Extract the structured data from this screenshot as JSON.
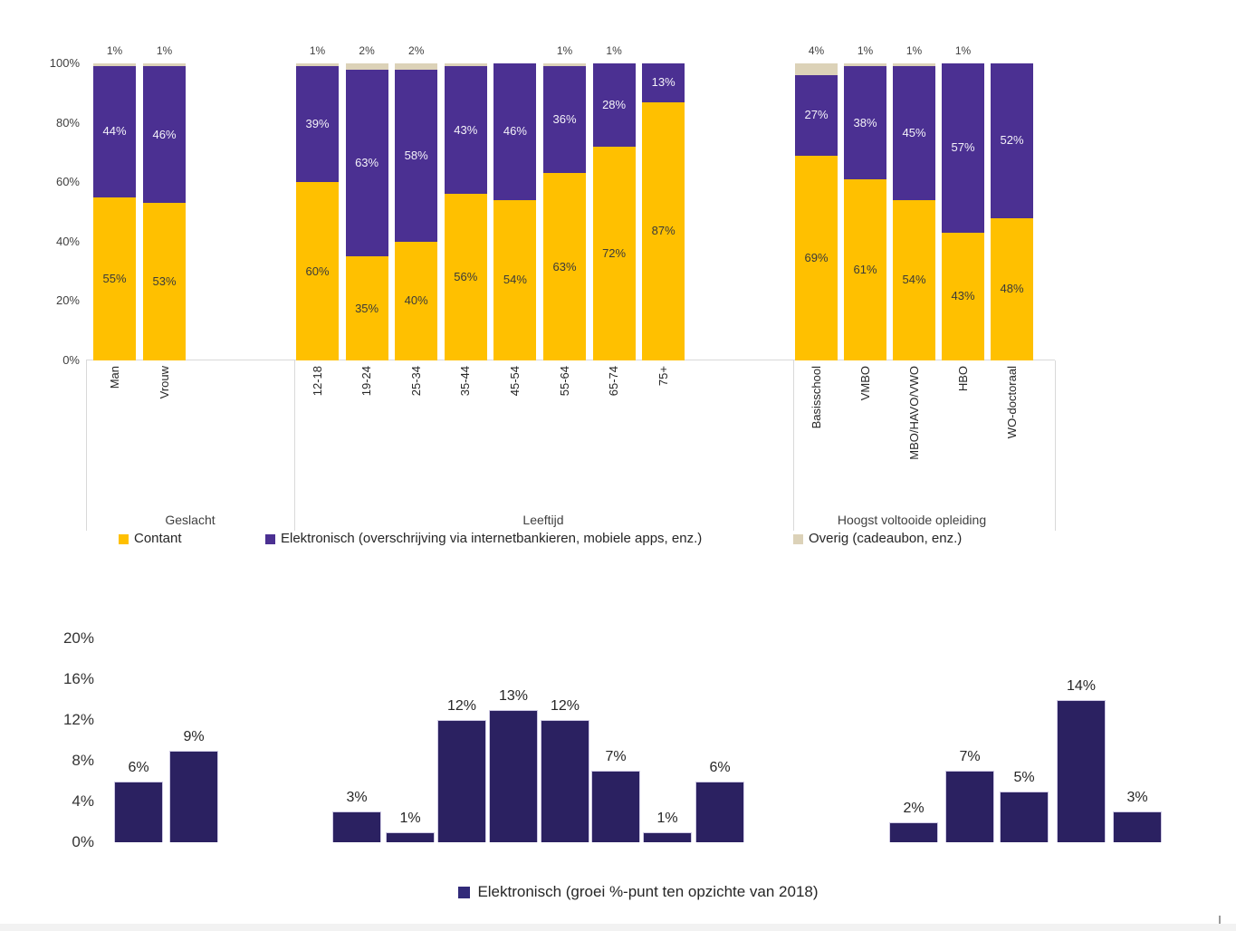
{
  "page": {
    "background": "#ffffff"
  },
  "colors": {
    "contant": "#FFC000",
    "elektronisch": "#4B3092",
    "overig": "#DCD2B8",
    "growth_bar": "#2B2161",
    "growth_bar_edge": "#CFCAE4",
    "axis_gray": "#D9D9D9"
  },
  "chart_data": [
    {
      "type": "bar",
      "variant": "stacked-100",
      "title": "",
      "ylabel": "",
      "ylim": [
        0,
        100
      ],
      "grid": false,
      "legend_position": "bottom",
      "y_axis": {
        "ticks": [
          "100%",
          "80%",
          "60%",
          "40%",
          "20%",
          "0%"
        ]
      },
      "series_order_bottom_to_top": [
        "Contant",
        "Elektronisch",
        "Overig"
      ],
      "legend": [
        {
          "label": "Contant",
          "color": "#FFC000"
        },
        {
          "label": "Elektronisch (overschrijving via internetbankieren, mobiele apps, enz.)",
          "color": "#4B3092"
        },
        {
          "label": "Overig (cadeaubon, enz.)",
          "color": "#DCD2B8"
        }
      ],
      "groups": [
        {
          "label": "Geslacht",
          "bars": [
            {
              "category": "Man",
              "contant": 55,
              "elektronisch": 44,
              "overig_label": "1%"
            },
            {
              "category": "Vrouw",
              "contant": 53,
              "elektronisch": 46,
              "overig_label": "1%"
            }
          ]
        },
        {
          "label": "Leeftijd",
          "bars": [
            {
              "category": "12-18",
              "contant": 60,
              "elektronisch": 39,
              "overig_label": "1%"
            },
            {
              "category": "19-24",
              "contant": 35,
              "elektronisch": 63,
              "overig_label": "2%"
            },
            {
              "category": "25-34",
              "contant": 40,
              "elektronisch": 58,
              "overig_label": "2%"
            },
            {
              "category": "35-44",
              "contant": 56,
              "elektronisch": 43,
              "overig_label": ""
            },
            {
              "category": "45-54",
              "contant": 54,
              "elektronisch": 46,
              "overig_label": ""
            },
            {
              "category": "55-64",
              "contant": 63,
              "elektronisch": 36,
              "overig_label": "1%"
            },
            {
              "category": "65-74",
              "contant": 72,
              "elektronisch": 28,
              "overig_label": "1%"
            },
            {
              "category": "75+",
              "contant": 87,
              "elektronisch": 13,
              "overig_label": ""
            }
          ]
        },
        {
          "label": "Hoogst voltooide opleiding",
          "bars": [
            {
              "category": "Basisschool",
              "contant": 69,
              "elektronisch": 27,
              "overig_label": "4%"
            },
            {
              "category": "VMBO",
              "contant": 61,
              "elektronisch": 38,
              "overig_label": "1%"
            },
            {
              "category": "MBO/HAVO/VWO",
              "contant": 54,
              "elektronisch": 45,
              "overig_label": "1%"
            },
            {
              "category": "HBO",
              "contant": 43,
              "elektronisch": 57,
              "overig_label": "1%"
            },
            {
              "category": "WO-doctoraal",
              "contant": 48,
              "elektronisch": 52,
              "overig_label": ""
            }
          ]
        }
      ]
    },
    {
      "type": "bar",
      "title": "",
      "ylabel": "",
      "ylim": [
        0,
        20
      ],
      "grid": false,
      "legend_position": "bottom",
      "y_axis": {
        "ticks": [
          "20%",
          "16%",
          "12%",
          "8%",
          "4%",
          "0%"
        ]
      },
      "legend": [
        {
          "label": "Elektronisch (groei %-punt ten opzichte van 2018)",
          "color": "#2B2161"
        }
      ],
      "groups": [
        {
          "values": [
            6,
            9
          ]
        },
        {
          "values": [
            3,
            1,
            12,
            13,
            12,
            7,
            1,
            6
          ]
        },
        {
          "values": [
            2,
            7,
            5,
            14,
            3
          ]
        }
      ],
      "value_label_suffix": "%"
    }
  ]
}
